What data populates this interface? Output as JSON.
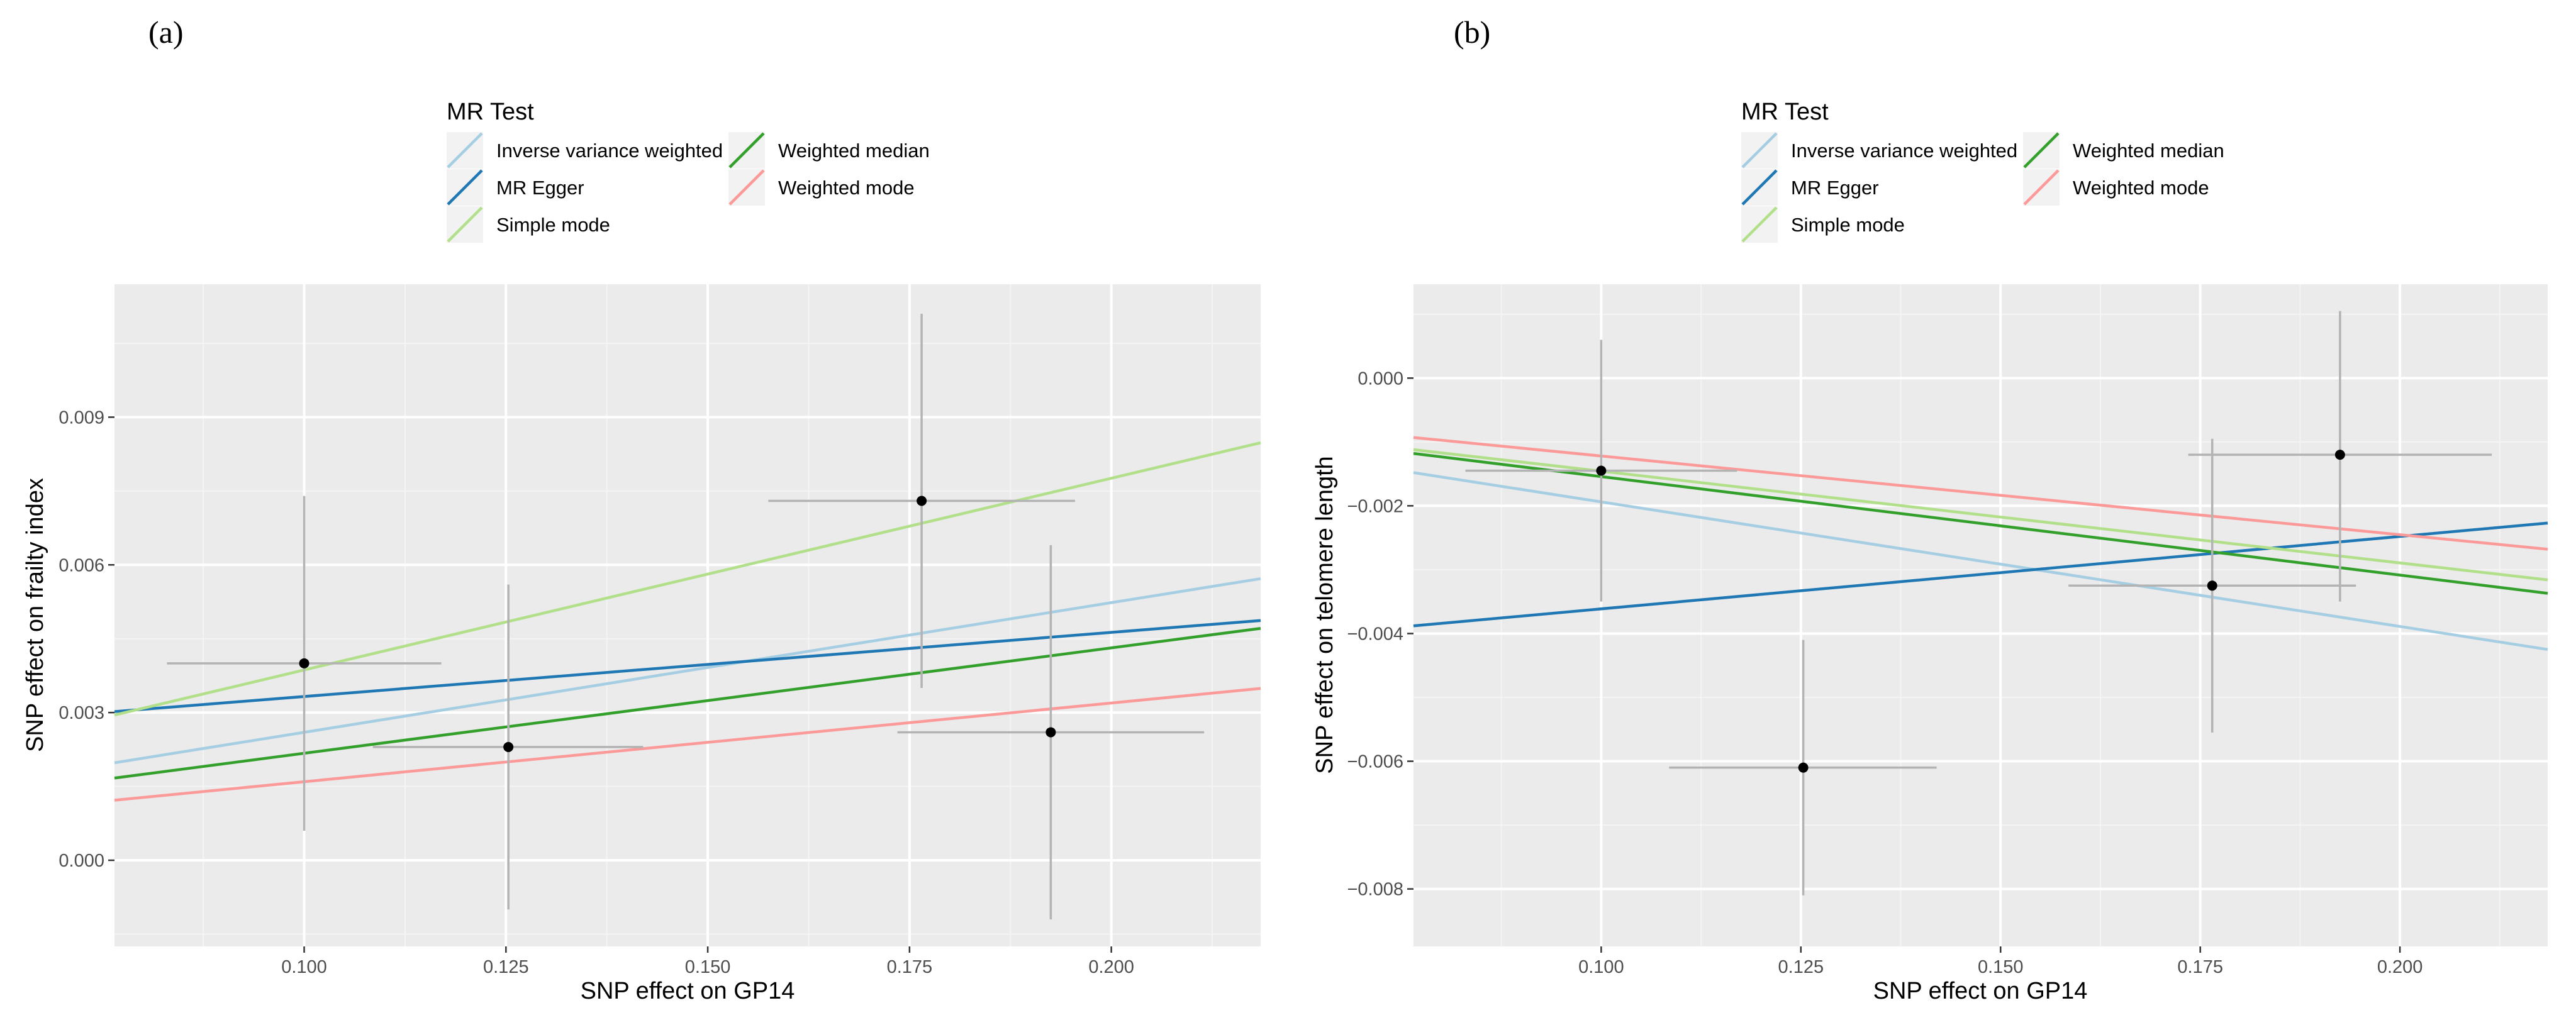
{
  "colors": {
    "panel_bg": "#ebebeb",
    "grid_major": "#ffffff",
    "grid_minor": "#f4f4f4",
    "errorbar": "#b3b3b3",
    "point": "#000000",
    "legend_key_bg": "#f2f2f2"
  },
  "legend": {
    "title": "MR Test",
    "entries": [
      {
        "name": "Inverse variance weighted",
        "color": "#a6cee3"
      },
      {
        "name": "MR Egger",
        "color": "#1f78b4"
      },
      {
        "name": "Simple mode",
        "color": "#b2df8a"
      },
      {
        "name": "Weighted median",
        "color": "#33a02c"
      },
      {
        "name": "Weighted mode",
        "color": "#fb9a99"
      }
    ]
  },
  "chart_data": [
    {
      "type": "scatter",
      "panel_label": "(a)",
      "title": "",
      "xlabel": "SNP effect on GP14",
      "ylabel": "SNP effect on frailty index",
      "xlim": [
        0.0765,
        0.2185
      ],
      "ylim": [
        -0.00175,
        0.0117
      ],
      "xticks": [
        0.1,
        0.125,
        0.15,
        0.175,
        0.2
      ],
      "xtick_labels": [
        "0.100",
        "0.125",
        "0.150",
        "0.175",
        "0.200"
      ],
      "yticks": [
        0.0,
        0.003,
        0.006,
        0.009
      ],
      "ytick_labels": [
        "0.000",
        "0.003",
        "0.006",
        "0.009"
      ],
      "points": [
        {
          "x": 0.1,
          "y": 0.004,
          "xmin": 0.083,
          "xmax": 0.117,
          "ymin": 0.0006,
          "ymax": 0.0074
        },
        {
          "x": 0.1253,
          "y": 0.0023,
          "xmin": 0.1085,
          "xmax": 0.142,
          "ymin": -0.001,
          "ymax": 0.0056
        },
        {
          "x": 0.1765,
          "y": 0.0073,
          "xmin": 0.1575,
          "xmax": 0.1955,
          "ymin": 0.0035,
          "ymax": 0.0111
        },
        {
          "x": 0.1925,
          "y": 0.0026,
          "xmin": 0.1735,
          "xmax": 0.2115,
          "ymin": -0.0012,
          "ymax": 0.0064
        }
      ],
      "series": [
        {
          "name": "Inverse variance weighted",
          "x": [
            0.0765,
            0.2185
          ],
          "y": [
            0.00198,
            0.00572
          ]
        },
        {
          "name": "MR Egger",
          "x": [
            0.0765,
            0.2185
          ],
          "y": [
            0.00302,
            0.00487
          ]
        },
        {
          "name": "Simple mode",
          "x": [
            0.0765,
            0.2185
          ],
          "y": [
            0.00295,
            0.00848
          ]
        },
        {
          "name": "Weighted median",
          "x": [
            0.0765,
            0.2185
          ],
          "y": [
            0.00167,
            0.00471
          ]
        },
        {
          "name": "Weighted mode",
          "x": [
            0.0765,
            0.2185
          ],
          "y": [
            0.00122,
            0.00349
          ]
        }
      ]
    },
    {
      "type": "scatter",
      "panel_label": "(b)",
      "title": "",
      "xlabel": "SNP effect on GP14",
      "ylabel": "SNP effect on telomere length",
      "xlim": [
        0.0765,
        0.2185
      ],
      "ylim": [
        -0.0089,
        0.00147
      ],
      "xticks": [
        0.1,
        0.125,
        0.15,
        0.175,
        0.2
      ],
      "xtick_labels": [
        "0.100",
        "0.125",
        "0.150",
        "0.175",
        "0.200"
      ],
      "yticks": [
        0.0,
        -0.002,
        -0.004,
        -0.006,
        -0.008
      ],
      "ytick_labels": [
        "0.000",
        "−0.002",
        "−0.004",
        "−0.006",
        "−0.008"
      ],
      "points": [
        {
          "x": 0.1,
          "y": -0.00145,
          "xmin": 0.083,
          "xmax": 0.117,
          "ymin": -0.0035,
          "ymax": 0.0006
        },
        {
          "x": 0.1253,
          "y": -0.0061,
          "xmin": 0.1085,
          "xmax": 0.142,
          "ymin": -0.0081,
          "ymax": -0.0041
        },
        {
          "x": 0.1765,
          "y": -0.00325,
          "xmin": 0.1585,
          "xmax": 0.1945,
          "ymin": -0.00555,
          "ymax": -0.00095
        },
        {
          "x": 0.1925,
          "y": -0.0012,
          "xmin": 0.1735,
          "xmax": 0.2115,
          "ymin": -0.0035,
          "ymax": 0.00105
        }
      ],
      "series": [
        {
          "name": "Inverse variance weighted",
          "x": [
            0.0765,
            0.2185
          ],
          "y": [
            -0.00148,
            -0.00425
          ]
        },
        {
          "name": "MR Egger",
          "x": [
            0.0765,
            0.2185
          ],
          "y": [
            -0.00388,
            -0.00227
          ]
        },
        {
          "name": "Simple mode",
          "x": [
            0.0765,
            0.2185
          ],
          "y": [
            -0.00112,
            -0.00316
          ]
        },
        {
          "name": "Weighted median",
          "x": [
            0.0765,
            0.2185
          ],
          "y": [
            -0.00118,
            -0.00337
          ]
        },
        {
          "name": "Weighted mode",
          "x": [
            0.0765,
            0.2185
          ],
          "y": [
            -0.00093,
            -0.00268
          ]
        }
      ]
    }
  ]
}
